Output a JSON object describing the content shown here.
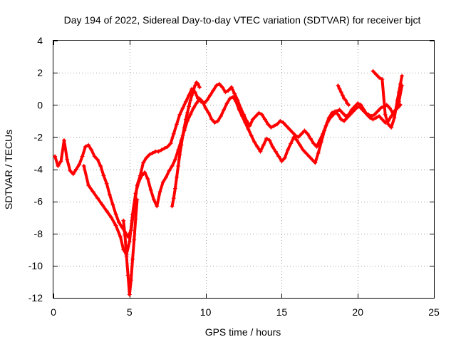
{
  "chart_data": {
    "type": "scatter",
    "title": "Day 194 of 2022, Sidereal Day-to-day VTEC variation (SDTVAR) for receiver bjct",
    "xlabel": "GPS time / hours",
    "ylabel": "SDTVAR / TECUs",
    "xlim": [
      0,
      25
    ],
    "ylim": [
      -12,
      4
    ],
    "xticks": [
      0,
      5,
      10,
      15,
      20,
      25
    ],
    "yticks": [
      -12,
      -10,
      -8,
      -6,
      -4,
      -2,
      0,
      2,
      4
    ],
    "xtick_labels": [
      "0",
      "5",
      "10",
      "15",
      "20",
      "25"
    ],
    "ytick_labels": [
      "-12",
      "-10",
      "-8",
      "-6",
      "-4",
      "-2",
      "0",
      "2",
      "4"
    ],
    "grid": true,
    "marker": "+",
    "color": "#ff0000",
    "series": [
      {
        "x": [
          0.1,
          0.3,
          0.5,
          0.7,
          0.9,
          1.1,
          1.3,
          1.5,
          1.7,
          1.9,
          2.1,
          2.3,
          2.5,
          2.7,
          2.9,
          3.1,
          3.3,
          3.5,
          3.7,
          3.9,
          4.1,
          4.3,
          4.5,
          4.7,
          4.9,
          5.1,
          5.3,
          5.5,
          5.7,
          5.9,
          6.1,
          6.3,
          6.5,
          6.7,
          6.9,
          7.1,
          7.3,
          7.5,
          7.7,
          7.9,
          8.1,
          8.3,
          8.5,
          8.7,
          8.9,
          9.1,
          9.3,
          9.5,
          9.7,
          9.9,
          10.1,
          10.3,
          10.5,
          10.7,
          10.9,
          11.1,
          11.3,
          11.5,
          11.7,
          11.9,
          12.1,
          12.3,
          12.5,
          12.7,
          12.9,
          13.1,
          13.3,
          13.5,
          13.7,
          13.9,
          14.1,
          14.3,
          14.5,
          14.7,
          14.9,
          15.1,
          15.3,
          15.5,
          15.7,
          15.9,
          16.1,
          16.3,
          16.5,
          16.7,
          16.9,
          17.1,
          17.3,
          17.5,
          17.7,
          17.9,
          18.1,
          18.3,
          18.5,
          18.7,
          18.9,
          19.1,
          19.3,
          19.5,
          19.7,
          19.9,
          20.1,
          20.3,
          20.5,
          20.7,
          20.9,
          21.1,
          21.3,
          21.5,
          21.7,
          21.9,
          22.1,
          22.3,
          22.5,
          22.7,
          22.9
        ],
        "y": [
          -3.2,
          -3.8,
          -3.5,
          -2.2,
          -3.4,
          -4.1,
          -4.3,
          -4.0,
          -3.7,
          -3.2,
          -2.6,
          -2.5,
          -2.8,
          -3.2,
          -3.4,
          -3.8,
          -4.4,
          -4.9,
          -5.6,
          -6.2,
          -6.8,
          -7.3,
          -7.6,
          -7.9,
          -8.2,
          -7.8,
          -6.4,
          -5.0,
          -4.4,
          -3.6,
          -3.3,
          -3.1,
          -3.0,
          -2.9,
          -2.9,
          -2.8,
          -2.7,
          -2.6,
          -2.4,
          -1.8,
          -1.2,
          -0.6,
          -0.2,
          0.2,
          0.6,
          1.0,
          0.8,
          0.4,
          0.2,
          0.1,
          0.3,
          0.6,
          0.9,
          1.2,
          1.3,
          1.1,
          0.8,
          0.9,
          1.1,
          0.7,
          0.3,
          -0.2,
          -0.6,
          -1.0,
          -1.3,
          -0.9,
          -0.7,
          -0.5,
          -0.6,
          -0.9,
          -1.2,
          -1.4,
          -1.3,
          -1.2,
          -1.0,
          -1.1,
          -1.3,
          -1.5,
          -1.7,
          -1.9,
          -2.0,
          -1.8,
          -1.6,
          -1.8,
          -2.1,
          -2.4,
          -2.6,
          -2.2,
          -1.8,
          -1.3,
          -0.8,
          -0.5,
          -0.4,
          -0.6,
          -0.9,
          -1.0,
          -0.8,
          -0.6,
          -0.4,
          -0.2,
          -0.1,
          -0.3,
          -0.5,
          -0.6,
          -0.7,
          -0.6,
          -0.4,
          -0.2,
          -0.1,
          0.0,
          -0.2,
          -0.5,
          -0.3,
          0.2,
          1.2
        ]
      },
      {
        "x": [
          2.0,
          2.3,
          2.6,
          2.9,
          3.2,
          3.5,
          3.8,
          4.1,
          4.4,
          4.6,
          4.8,
          5.0,
          5.2,
          5.4,
          5.6,
          5.8,
          6.0,
          6.2,
          6.4,
          6.6,
          6.8,
          7.0,
          7.2,
          7.4,
          7.6,
          7.8,
          8.0,
          8.2,
          8.4,
          8.6,
          8.8,
          9.0,
          9.2,
          9.4,
          9.6,
          9.8,
          10.0,
          10.2,
          10.4,
          10.6,
          10.8,
          11.0,
          11.2,
          11.4,
          11.6,
          11.8,
          12.0,
          12.2,
          12.4,
          12.6,
          12.8,
          13.0,
          13.2,
          13.4,
          13.6,
          13.8,
          14.0,
          14.2,
          14.4,
          14.6,
          14.8,
          15.0,
          15.2,
          15.4,
          15.6,
          15.8,
          16.0,
          16.2,
          16.4,
          16.6,
          16.8,
          17.0,
          17.2,
          17.4,
          17.6,
          17.8,
          18.0,
          18.2,
          18.4,
          18.6,
          18.8,
          19.0,
          19.2,
          19.4,
          19.6,
          19.8,
          20.0,
          20.2,
          20.4,
          20.6,
          20.8,
          21.0,
          21.2,
          21.4,
          21.6,
          21.8,
          22.0,
          22.2,
          22.4,
          22.6,
          22.8
        ],
        "y": [
          -3.8,
          -5.0,
          -5.4,
          -5.8,
          -6.2,
          -6.6,
          -7.0,
          -7.5,
          -8.2,
          -9.0,
          -9.3,
          -8.5,
          -6.8,
          -5.5,
          -4.8,
          -4.4,
          -4.2,
          -4.6,
          -5.3,
          -5.9,
          -6.3,
          -5.4,
          -4.8,
          -4.5,
          -4.1,
          -3.8,
          -3.4,
          -2.8,
          -2.2,
          -1.6,
          -1.0,
          -0.6,
          -0.2,
          0.1,
          0.4,
          0.2,
          -0.2,
          -0.5,
          -0.9,
          -1.1,
          -1.0,
          -0.7,
          -0.3,
          0.1,
          0.4,
          0.5,
          0.2,
          -0.3,
          -0.7,
          -1.1,
          -1.5,
          -1.9,
          -2.3,
          -2.6,
          -2.9,
          -2.5,
          -2.1,
          -2.2,
          -2.6,
          -2.9,
          -3.2,
          -3.5,
          -3.3,
          -2.8,
          -2.4,
          -2.0,
          -2.2,
          -2.5,
          -2.8,
          -3.0,
          -3.2,
          -3.4,
          -3.6,
          -3.0,
          -2.3,
          -1.6,
          -1.1,
          -0.8,
          -0.6,
          -0.4,
          -0.3,
          -0.5,
          -0.7,
          -0.6,
          -0.3,
          -0.1,
          0.1,
          0.0,
          -0.3,
          -0.6,
          -0.8,
          -0.9,
          -0.8,
          -0.7,
          -0.9,
          -1.1,
          -1.0,
          -0.7,
          -0.4,
          -0.2,
          0.0
        ]
      },
      {
        "x": [
          4.6,
          4.7,
          4.8,
          4.9,
          5.0,
          5.1,
          5.2,
          5.3,
          5.4,
          5.5,
          7.8,
          7.9,
          8.0,
          8.1,
          8.2,
          8.3,
          8.4,
          8.5,
          8.6,
          8.7,
          8.8,
          8.9,
          9.0,
          9.1,
          9.2,
          9.3,
          9.4,
          9.5,
          9.6,
          18.7,
          18.8,
          18.9,
          19.0,
          19.1,
          19.2,
          19.3,
          19.4,
          21.0,
          21.2,
          21.4,
          21.6,
          21.8,
          22.0,
          22.2,
          22.4,
          22.6,
          22.7,
          22.8,
          22.9
        ],
        "y": [
          -7.2,
          -8.1,
          -9.4,
          -10.6,
          -11.8,
          -10.9,
          -9.6,
          -8.4,
          -7.1,
          -5.9,
          -6.3,
          -5.8,
          -5.2,
          -4.5,
          -3.8,
          -3.1,
          -2.5,
          -1.9,
          -1.4,
          -0.9,
          -0.5,
          -0.1,
          0.3,
          0.6,
          0.9,
          1.2,
          1.4,
          1.3,
          1.1,
          1.2,
          1.0,
          0.8,
          0.6,
          0.4,
          0.3,
          0.1,
          0.0,
          2.1,
          1.9,
          1.7,
          1.6,
          -0.6,
          -1.2,
          -1.4,
          -0.8,
          0.3,
          0.8,
          1.3,
          1.8
        ]
      }
    ]
  }
}
